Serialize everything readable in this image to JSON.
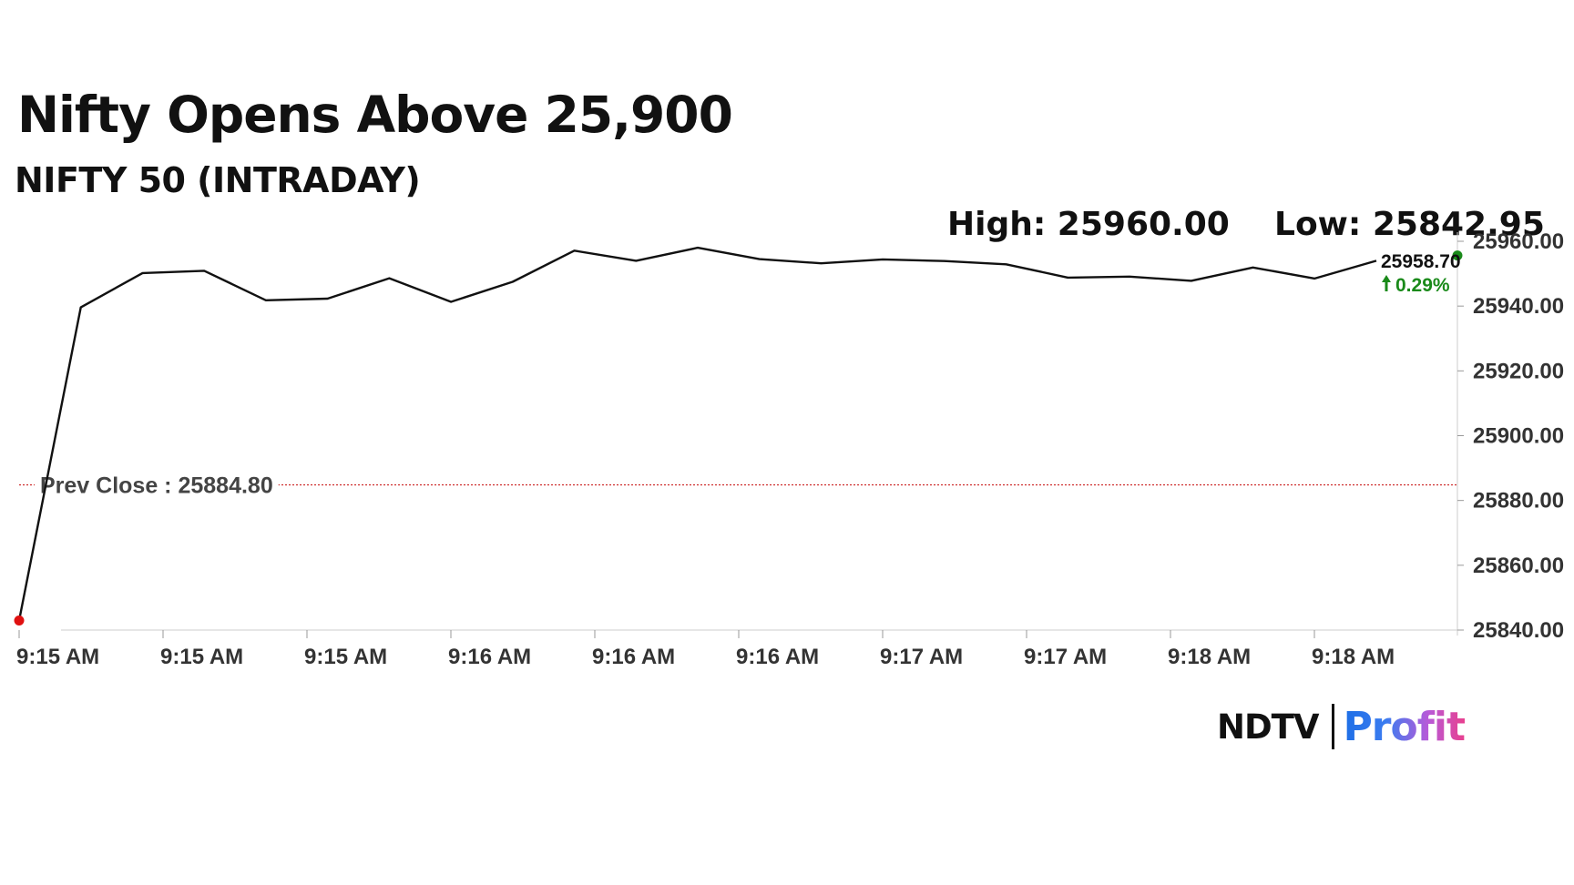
{
  "header": {
    "title": "Nifty Opens Above 25,900",
    "subtitle": "NIFTY 50 (INTRADAY)"
  },
  "stats": {
    "high": "High: 25960.00",
    "low": "Low: 25842.95"
  },
  "annotations": {
    "prev_close": "Prev Close : 25884.80",
    "last_price": "25958.70",
    "change": "0.29%"
  },
  "logo": {
    "brand": "NDTV",
    "product": "Profit"
  },
  "colors": {
    "line": "#111111",
    "prev_close_line": "#cc2222",
    "start_marker": "#e01010",
    "end_marker": "#1a8a1a",
    "change_up": "#1a8a1a"
  },
  "chart_data": {
    "type": "line",
    "title": "Nifty Opens Above 25,900",
    "subtitle": "NIFTY 50 (INTRADAY)",
    "xlabel": "",
    "ylabel": "",
    "x_tick_labels": [
      "9:15 AM",
      "9:15 AM",
      "9:15 AM",
      "9:16 AM",
      "9:16 AM",
      "9:16 AM",
      "9:17 AM",
      "9:17 AM",
      "9:18 AM",
      "9:18 AM"
    ],
    "y_tick_labels": [
      "25840.00",
      "25860.00",
      "25880.00",
      "25900.00",
      "25920.00",
      "25940.00",
      "25960.00"
    ],
    "ylim": [
      25840,
      25960
    ],
    "series": [
      {
        "values": [
          25842.95,
          25939.6,
          25950.2,
          25950.9,
          25941.8,
          25942.3,
          25948.6,
          25941.3,
          25947.5,
          25957.1,
          25954.0,
          25958.0,
          25954.5,
          25953.2,
          25954.4,
          25953.9,
          25952.9,
          25948.8,
          25949.1,
          25947.8,
          25951.9,
          25948.5,
          25954.0
        ]
      }
    ],
    "reference_line": {
      "label": "Prev Close : 25884.80",
      "value": 25884.8
    },
    "last_value": 25958.7,
    "change_percent": "0.29%",
    "high": 25960.0,
    "low": 25842.95,
    "grid": false,
    "legend": "none"
  }
}
